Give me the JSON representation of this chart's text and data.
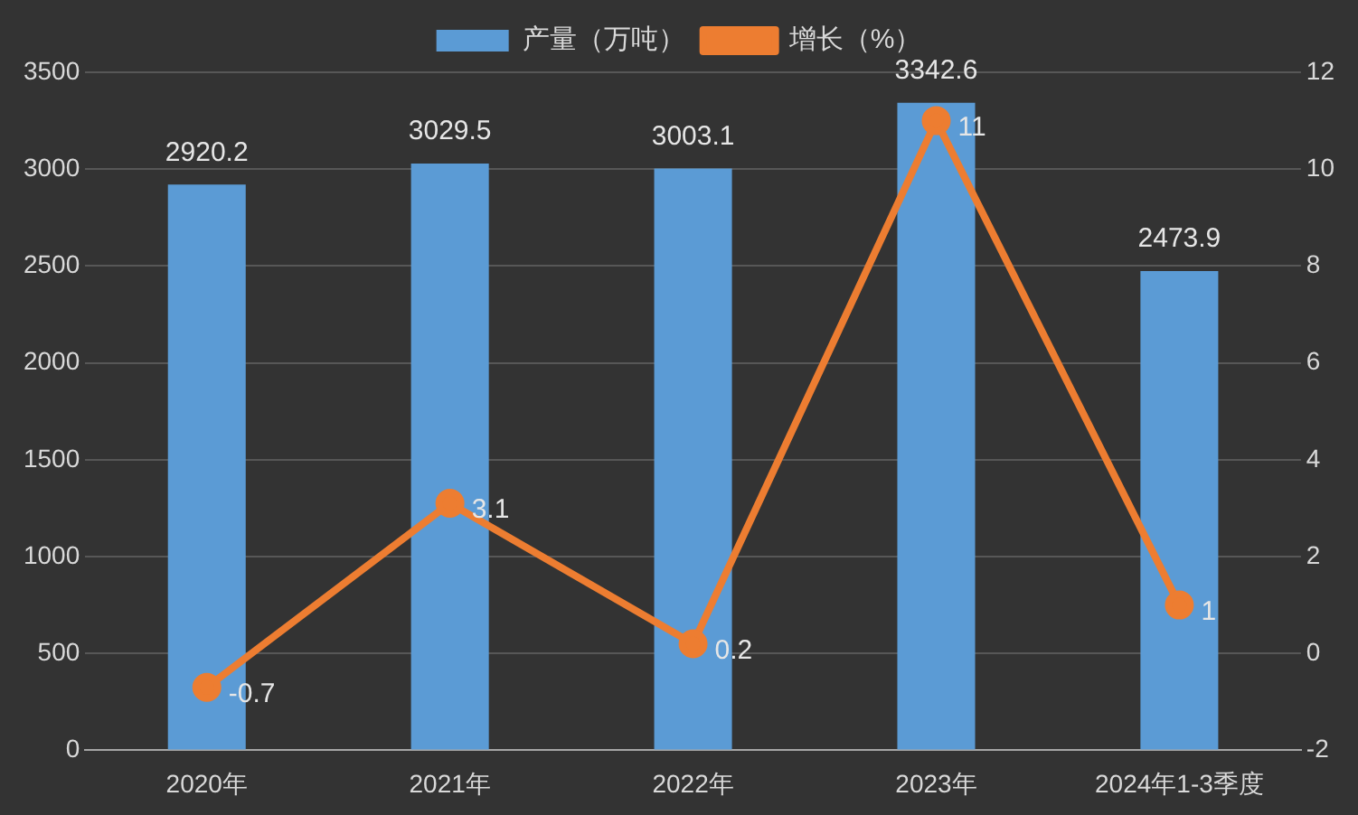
{
  "chart_data": {
    "type": "bar",
    "categories": [
      "2020年",
      "2021年",
      "2022年",
      "2023年",
      "2024年1-3季度"
    ],
    "series": [
      {
        "name": "产量（万吨）",
        "color": "#5b9bd5",
        "values": [
          2920.2,
          3029.5,
          3003.1,
          3342.6,
          2473.9
        ]
      },
      {
        "name": "增长（%）",
        "type": "line",
        "axis": "y2",
        "color": "#ed7d31",
        "values": [
          -0.7,
          3.1,
          0.2,
          11,
          1
        ]
      }
    ],
    "ylim": [
      0,
      3500
    ],
    "yticks": [
      0,
      500,
      1000,
      1500,
      2000,
      2500,
      3000,
      3500
    ],
    "y2lim": [
      -2,
      12
    ],
    "y2ticks": [
      -2,
      0,
      2,
      4,
      6,
      8,
      10,
      12
    ],
    "grid": "y",
    "legend": "top",
    "marker": "circle",
    "line_style": "solid",
    "data_labels": true
  }
}
